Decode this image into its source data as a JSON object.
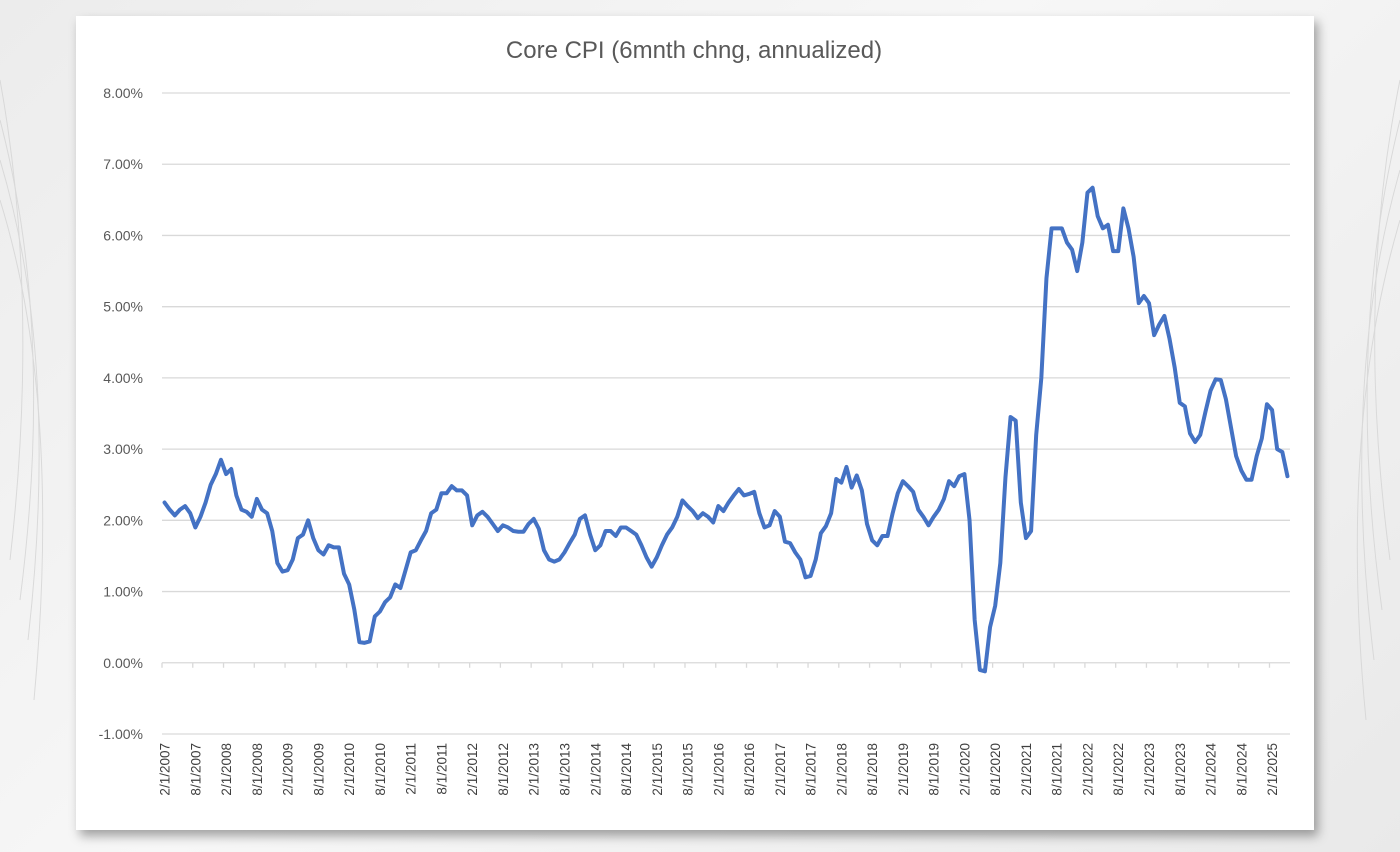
{
  "chart_data": {
    "type": "line",
    "title": "Core CPI (6mnth chng, annualized)",
    "xlabel": "",
    "ylabel": "",
    "ylim": [
      -1,
      8
    ],
    "yticks": [
      {
        "value": 8,
        "label": "8.00%"
      },
      {
        "value": 7,
        "label": "7.00%"
      },
      {
        "value": 6,
        "label": "6.00%"
      },
      {
        "value": 5,
        "label": "5.00%"
      },
      {
        "value": 4,
        "label": "4.00%"
      },
      {
        "value": 3,
        "label": "3.00%"
      },
      {
        "value": 2,
        "label": "2.00%"
      },
      {
        "value": 1,
        "label": "1.00%"
      },
      {
        "value": 0,
        "label": "0.00%"
      },
      {
        "value": -1,
        "label": "-1.00%"
      }
    ],
    "xtick_labels": [
      "2/1/2007",
      "8/1/2007",
      "2/1/2008",
      "8/1/2008",
      "2/1/2009",
      "8/1/2009",
      "2/1/2010",
      "8/1/2010",
      "2/1/2011",
      "8/1/2011",
      "2/1/2012",
      "8/1/2012",
      "2/1/2013",
      "8/1/2013",
      "2/1/2014",
      "8/1/2014",
      "2/1/2015",
      "8/1/2015",
      "2/1/2016",
      "8/1/2016",
      "2/1/2017",
      "8/1/2017",
      "2/1/2018",
      "8/1/2018",
      "2/1/2019",
      "8/1/2019",
      "2/1/2020",
      "8/1/2020",
      "2/1/2021",
      "8/1/2021",
      "2/1/2022",
      "8/1/2022",
      "2/1/2023",
      "8/1/2023",
      "2/1/2024",
      "8/1/2024",
      "2/1/2025"
    ],
    "grid": true,
    "legend": "none",
    "color": "#4472c4",
    "x_start": "2/1/2007",
    "x_end": "6/1/2025",
    "series": [
      {
        "values": [
          2.25,
          2.15,
          2.07,
          2.15,
          2.2,
          2.1,
          1.9,
          2.05,
          2.25,
          2.5,
          2.65,
          2.85,
          2.65,
          2.72,
          2.35,
          2.15,
          2.12,
          2.05,
          2.3,
          2.15,
          2.1,
          1.85,
          1.4,
          1.28,
          1.3,
          1.45,
          1.75,
          1.8,
          2.0,
          1.75,
          1.58,
          1.52,
          1.65,
          1.62,
          1.62,
          1.25,
          1.1,
          0.75,
          0.29,
          0.28,
          0.3,
          0.65,
          0.72,
          0.85,
          0.92,
          1.1,
          1.05,
          1.3,
          1.55,
          1.58,
          1.72,
          1.85,
          2.1,
          2.15,
          2.38,
          2.38,
          2.48,
          2.42,
          2.42,
          2.35,
          1.93,
          2.07,
          2.12,
          2.05,
          1.95,
          1.85,
          1.93,
          1.9,
          1.85,
          1.84,
          1.84,
          1.95,
          2.02,
          1.88,
          1.58,
          1.45,
          1.42,
          1.45,
          1.55,
          1.68,
          1.8,
          2.02,
          2.07,
          1.8,
          1.58,
          1.65,
          1.85,
          1.85,
          1.78,
          1.9,
          1.9,
          1.85,
          1.8,
          1.65,
          1.48,
          1.35,
          1.48,
          1.65,
          1.8,
          1.9,
          2.05,
          2.28,
          2.2,
          2.13,
          2.03,
          2.1,
          2.05,
          1.97,
          2.2,
          2.13,
          2.25,
          2.35,
          2.44,
          2.35,
          2.37,
          2.4,
          2.1,
          1.9,
          1.93,
          2.13,
          2.05,
          1.7,
          1.68,
          1.55,
          1.45,
          1.2,
          1.22,
          1.45,
          1.82,
          1.92,
          2.1,
          2.58,
          2.53,
          2.75,
          2.46,
          2.63,
          2.42,
          1.95,
          1.72,
          1.65,
          1.78,
          1.78,
          2.1,
          2.38,
          2.55,
          2.48,
          2.4,
          2.15,
          2.05,
          1.93,
          2.05,
          2.15,
          2.3,
          2.55,
          2.48,
          2.62,
          2.65,
          2.0,
          0.6,
          -0.1,
          -0.12,
          0.5,
          0.8,
          1.4,
          2.6,
          3.45,
          3.4,
          2.25,
          1.75,
          1.85,
          3.2,
          4.0,
          5.4,
          6.1,
          6.1,
          6.1,
          5.9,
          5.8,
          5.5,
          5.9,
          6.6,
          6.67,
          6.27,
          6.1,
          6.15,
          5.78,
          5.78,
          6.38,
          6.1,
          5.7,
          5.05,
          5.15,
          5.05,
          4.6,
          4.75,
          4.87,
          4.55,
          4.15,
          3.65,
          3.6,
          3.22,
          3.1,
          3.2,
          3.52,
          3.82,
          3.98,
          3.97,
          3.7,
          3.3,
          2.9,
          2.7,
          2.57,
          2.57,
          2.9,
          3.15,
          3.63,
          3.55,
          3.0,
          2.96,
          2.62
        ]
      }
    ]
  }
}
